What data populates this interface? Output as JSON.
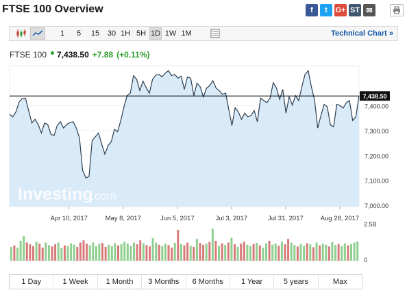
{
  "page": {
    "title": "FTSE 100 Overview"
  },
  "share": [
    {
      "name": "facebook-share-icon",
      "glyph": "f",
      "color": "#3b5998"
    },
    {
      "name": "twitter-share-icon",
      "glyph": "t",
      "color": "#1da1f2"
    },
    {
      "name": "google-plus-share-icon",
      "glyph": "G+",
      "color": "#dd4b39"
    },
    {
      "name": "stocktwits-share-icon",
      "glyph": "ST",
      "color": "#40576f"
    },
    {
      "name": "email-share-icon",
      "glyph": "✉",
      "color": "#555555"
    }
  ],
  "toolbar": {
    "chart_types": [
      {
        "name": "candlestick-chart-icon"
      },
      {
        "name": "area-chart-icon",
        "selected": true
      }
    ],
    "intervals": [
      "1",
      "5",
      "15",
      "30",
      "1H",
      "5H",
      "1D",
      "1W",
      "1M"
    ],
    "selected_interval": "1D",
    "technical_chart_label": "Technical Chart »"
  },
  "quote": {
    "name": "FTSE 100",
    "price": "7,438.50",
    "change": "+7.88",
    "change_pct": "(+0.11%)"
  },
  "watermark": {
    "brand": "Investing",
    "suffix": ".com"
  },
  "ranges": [
    "1 Day",
    "1 Week",
    "1 Month",
    "3 Months",
    "6 Months",
    "1 Year",
    "5 years",
    "Max"
  ],
  "colors": {
    "up": "#2e9e2e",
    "down": "#c0392b",
    "area_fill": "#d9eaf9",
    "line": "#2c3e50",
    "link": "#1256a8"
  },
  "chart_data": {
    "type": "area",
    "x_tick_labels": [
      "Apr 10, 2017",
      "May 8, 2017",
      "Jun 5, 2017",
      "Jul 3, 2017",
      "Jul 31, 2017",
      "Aug 28, 2017"
    ],
    "y_tick_labels": [
      "7,400.00",
      "7,300.00",
      "7,200.00",
      "7,100.00",
      "7,000.00"
    ],
    "y_ticks": [
      7400,
      7300,
      7200,
      7100,
      7000
    ],
    "ylim": [
      6995,
      7560
    ],
    "current_value": 7438.5,
    "current_label": "7,438.50",
    "values": [
      7365,
      7355,
      7375,
      7415,
      7428,
      7430,
      7380,
      7330,
      7345,
      7325,
      7290,
      7330,
      7325,
      7285,
      7280,
      7320,
      7335,
      7310,
      7325,
      7332,
      7335,
      7310,
      7270,
      7140,
      7110,
      7115,
      7260,
      7275,
      7290,
      7245,
      7205,
      7240,
      7255,
      7305,
      7295,
      7340,
      7395,
      7440,
      7450,
      7520,
      7505,
      7460,
      7498,
      7472,
      7450,
      7505,
      7522,
      7525,
      7515,
      7530,
      7540,
      7520,
      7525,
      7510,
      7518,
      7465,
      7515,
      7510,
      7440,
      7490,
      7475,
      7435,
      7470,
      7480,
      7500,
      7470,
      7460,
      7445,
      7450,
      7385,
      7320,
      7392,
      7375,
      7345,
      7370,
      7355,
      7360,
      7380,
      7335,
      7430,
      7420,
      7412,
      7430,
      7492,
      7470,
      7425,
      7465,
      7370,
      7435,
      7402,
      7440,
      7420,
      7475,
      7525,
      7540,
      7475,
      7422,
      7310,
      7360,
      7405,
      7395,
      7322,
      7315,
      7405,
      7400,
      7390,
      7412,
      7420,
      7340,
      7355,
      7440
    ],
    "volume": {
      "axis_labels": [
        "2.5B",
        "0"
      ],
      "bars": [
        {
          "v": 0.38,
          "up": true
        },
        {
          "v": 0.42,
          "up": false
        },
        {
          "v": 0.36,
          "up": true
        },
        {
          "v": 0.55,
          "up": true
        },
        {
          "v": 0.68,
          "up": true
        },
        {
          "v": 0.5,
          "up": false
        },
        {
          "v": 0.45,
          "up": false
        },
        {
          "v": 0.4,
          "up": false
        },
        {
          "v": 0.52,
          "up": true
        },
        {
          "v": 0.47,
          "up": false
        },
        {
          "v": 0.36,
          "up": false
        },
        {
          "v": 0.5,
          "up": true
        },
        {
          "v": 0.43,
          "up": true
        },
        {
          "v": 0.39,
          "up": false
        },
        {
          "v": 0.45,
          "up": false
        },
        {
          "v": 0.5,
          "up": true
        },
        {
          "v": 0.35,
          "up": true
        },
        {
          "v": 0.42,
          "up": false
        },
        {
          "v": 0.4,
          "up": true
        },
        {
          "v": 0.48,
          "up": true
        },
        {
          "v": 0.44,
          "up": true
        },
        {
          "v": 0.38,
          "up": false
        },
        {
          "v": 0.5,
          "up": false
        },
        {
          "v": 0.56,
          "up": false
        },
        {
          "v": 0.47,
          "up": false
        },
        {
          "v": 0.42,
          "up": true
        },
        {
          "v": 0.5,
          "up": true
        },
        {
          "v": 0.4,
          "up": true
        },
        {
          "v": 0.46,
          "up": true
        },
        {
          "v": 0.49,
          "up": false
        },
        {
          "v": 0.38,
          "up": false
        },
        {
          "v": 0.44,
          "up": true
        },
        {
          "v": 0.4,
          "up": true
        },
        {
          "v": 0.48,
          "up": true
        },
        {
          "v": 0.42,
          "up": false
        },
        {
          "v": 0.45,
          "up": true
        },
        {
          "v": 0.52,
          "up": true
        },
        {
          "v": 0.47,
          "up": true
        },
        {
          "v": 0.41,
          "up": true
        },
        {
          "v": 0.5,
          "up": true
        },
        {
          "v": 0.45,
          "up": false
        },
        {
          "v": 0.56,
          "up": false
        },
        {
          "v": 0.48,
          "up": true
        },
        {
          "v": 0.43,
          "up": false
        },
        {
          "v": 0.39,
          "up": false
        },
        {
          "v": 0.62,
          "up": true
        },
        {
          "v": 0.5,
          "up": true
        },
        {
          "v": 0.44,
          "up": false
        },
        {
          "v": 0.4,
          "up": true
        },
        {
          "v": 0.47,
          "up": true
        },
        {
          "v": 0.43,
          "up": false
        },
        {
          "v": 0.36,
          "up": false
        },
        {
          "v": 0.49,
          "up": true
        },
        {
          "v": 0.85,
          "up": false
        },
        {
          "v": 0.46,
          "up": true
        },
        {
          "v": 0.42,
          "up": false
        },
        {
          "v": 0.5,
          "up": false
        },
        {
          "v": 0.41,
          "up": true
        },
        {
          "v": 0.38,
          "up": false
        },
        {
          "v": 0.6,
          "up": true
        },
        {
          "v": 0.49,
          "up": false
        },
        {
          "v": 0.44,
          "up": false
        },
        {
          "v": 0.47,
          "up": true
        },
        {
          "v": 0.52,
          "up": false
        },
        {
          "v": 0.88,
          "up": true
        },
        {
          "v": 0.55,
          "up": false
        },
        {
          "v": 0.41,
          "up": true
        },
        {
          "v": 0.48,
          "up": false
        },
        {
          "v": 0.43,
          "up": true
        },
        {
          "v": 0.5,
          "up": false
        },
        {
          "v": 0.63,
          "up": true
        },
        {
          "v": 0.45,
          "up": false
        },
        {
          "v": 0.38,
          "up": true
        },
        {
          "v": 0.47,
          "up": false
        },
        {
          "v": 0.52,
          "up": false
        },
        {
          "v": 0.44,
          "up": true
        },
        {
          "v": 0.4,
          "up": true
        },
        {
          "v": 0.46,
          "up": false
        },
        {
          "v": 0.49,
          "up": true
        },
        {
          "v": 0.42,
          "up": false
        },
        {
          "v": 0.36,
          "up": true
        },
        {
          "v": 0.48,
          "up": true
        },
        {
          "v": 0.55,
          "up": false
        },
        {
          "v": 0.44,
          "up": true
        },
        {
          "v": 0.47,
          "up": true
        },
        {
          "v": 0.41,
          "up": false
        },
        {
          "v": 0.52,
          "up": true
        },
        {
          "v": 0.45,
          "up": false
        },
        {
          "v": 0.6,
          "up": false
        },
        {
          "v": 0.5,
          "up": true
        },
        {
          "v": 0.43,
          "up": true
        },
        {
          "v": 0.39,
          "up": false
        },
        {
          "v": 0.46,
          "up": true
        },
        {
          "v": 0.41,
          "up": true
        },
        {
          "v": 0.48,
          "up": false
        },
        {
          "v": 0.45,
          "up": true
        },
        {
          "v": 0.37,
          "up": false
        },
        {
          "v": 0.5,
          "up": true
        },
        {
          "v": 0.42,
          "up": false
        },
        {
          "v": 0.47,
          "up": true
        },
        {
          "v": 0.44,
          "up": true
        },
        {
          "v": 0.39,
          "up": false
        },
        {
          "v": 0.51,
          "up": true
        },
        {
          "v": 0.43,
          "up": true
        },
        {
          "v": 0.46,
          "up": false
        },
        {
          "v": 0.4,
          "up": true
        },
        {
          "v": 0.48,
          "up": true
        },
        {
          "v": 0.42,
          "up": false
        },
        {
          "v": 0.45,
          "up": true
        },
        {
          "v": 0.5,
          "up": true
        },
        {
          "v": 0.53,
          "up": true
        }
      ]
    }
  }
}
